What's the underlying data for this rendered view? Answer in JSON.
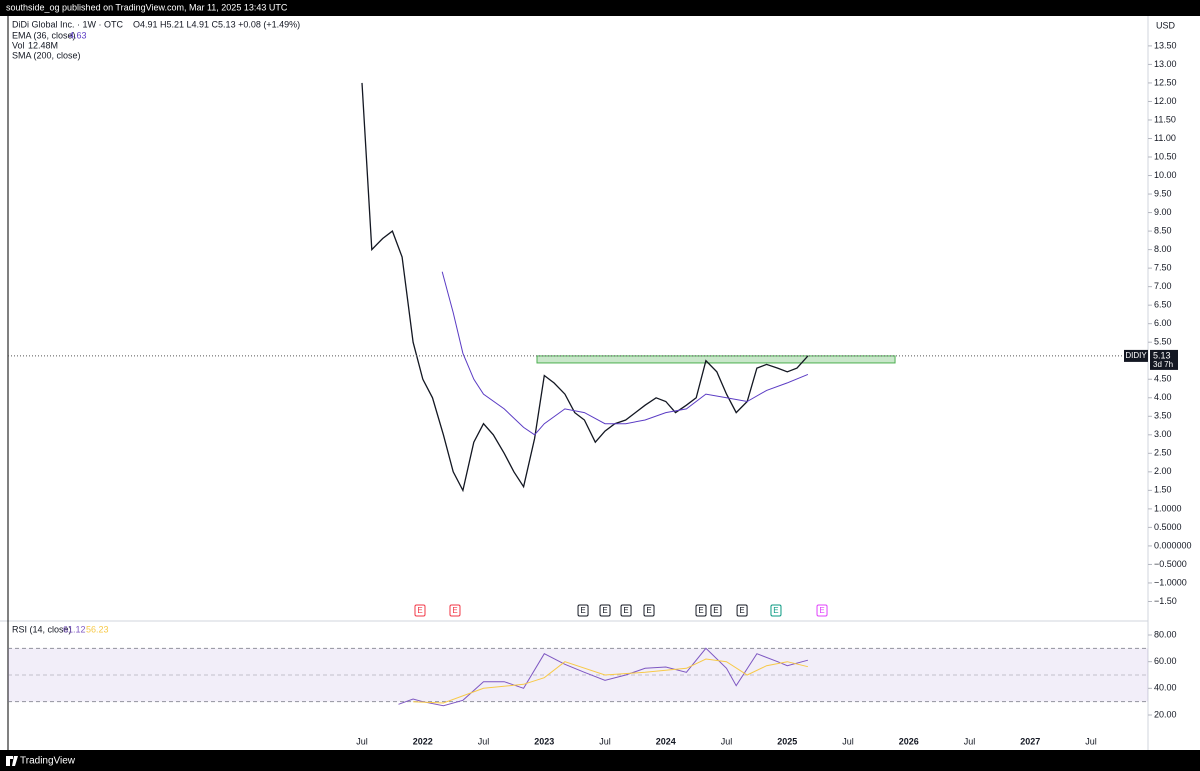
{
  "header": {
    "publisher": "southside_og published on TradingView.com, Mar 11, 2025 13:43 UTC",
    "symbol": "DiDi Global Inc. · 1W · OTC",
    "ohlc": "O4.91 H5.21 L4.91 C5.13 +0.08 (+1.49%)",
    "volume_label": "Vol",
    "volume_value": "12.48M",
    "sma_label": "SMA (200, close)",
    "currency": "USD",
    "countdown": "3d 7h"
  },
  "footer": {
    "brand": "TradingView"
  },
  "chart_data": [
    {
      "type": "line",
      "xlim": [
        2018.586,
        2027.969
      ],
      "ylim": [
        -2.0,
        14.28
      ],
      "xticks": [
        {
          "value": 2021.5,
          "label": "Jul"
        },
        {
          "value": 2022,
          "label": "2022"
        },
        {
          "value": 2022.5,
          "label": "Jul"
        },
        {
          "value": 2023,
          "label": "2023"
        },
        {
          "value": 2023.5,
          "label": "Jul"
        },
        {
          "value": 2024,
          "label": "2024"
        },
        {
          "value": 2024.5,
          "label": "Jul"
        },
        {
          "value": 2025,
          "label": "2025"
        },
        {
          "value": 2025.5,
          "label": "Jul"
        },
        {
          "value": 2026,
          "label": "2026"
        },
        {
          "value": 2026.5,
          "label": "Jul"
        },
        {
          "value": 2027,
          "label": "2027"
        },
        {
          "value": 2027.5,
          "label": "Jul"
        }
      ],
      "yticks": [
        {
          "value": 13.5,
          "label": "13.50"
        },
        {
          "value": 13,
          "label": "13.00"
        },
        {
          "value": 12.5,
          "label": "12.50"
        },
        {
          "value": 12,
          "label": "12.00"
        },
        {
          "value": 11.5,
          "label": "11.50"
        },
        {
          "value": 11,
          "label": "11.00"
        },
        {
          "value": 10.5,
          "label": "10.50"
        },
        {
          "value": 10,
          "label": "10.00"
        },
        {
          "value": 9.5,
          "label": "9.50"
        },
        {
          "value": 9,
          "label": "9.00"
        },
        {
          "value": 8.5,
          "label": "8.50"
        },
        {
          "value": 8,
          "label": "8.00"
        },
        {
          "value": 7.5,
          "label": "7.50"
        },
        {
          "value": 7,
          "label": "7.00"
        },
        {
          "value": 6.5,
          "label": "6.50"
        },
        {
          "value": 6,
          "label": "6.00"
        },
        {
          "value": 5.5,
          "label": "5.50"
        },
        {
          "value": 4.5,
          "label": "4.50"
        },
        {
          "value": 4,
          "label": "4.00"
        },
        {
          "value": 3.5,
          "label": "3.50"
        },
        {
          "value": 3,
          "label": "3.00"
        },
        {
          "value": 2.5,
          "label": "2.50"
        },
        {
          "value": 2,
          "label": "2.00"
        },
        {
          "value": 1.5,
          "label": "1.50"
        },
        {
          "value": 1,
          "label": "1.0000"
        },
        {
          "value": 0.5,
          "label": "0.5000"
        },
        {
          "value": 0,
          "label": "0.000000"
        },
        {
          "value": -0.5,
          "label": "−0.5000"
        },
        {
          "value": -1,
          "label": "−1.0000"
        },
        {
          "value": -1.5,
          "label": "−1.50"
        }
      ],
      "series": [
        {
          "name": "DIDIY",
          "color": "#131722",
          "x": [
            2021.5,
            2021.58,
            2021.67,
            2021.75,
            2021.83,
            2021.92,
            2022.0,
            2022.08,
            2022.17,
            2022.25,
            2022.33,
            2022.42,
            2022.5,
            2022.58,
            2022.67,
            2022.75,
            2022.83,
            2022.92,
            2023.0,
            2023.08,
            2023.17,
            2023.25,
            2023.33,
            2023.42,
            2023.5,
            2023.58,
            2023.67,
            2023.75,
            2023.83,
            2023.92,
            2024.0,
            2024.08,
            2024.17,
            2024.25,
            2024.33,
            2024.42,
            2024.5,
            2024.58,
            2024.67,
            2024.75,
            2024.83,
            2024.92,
            2025.0,
            2025.08,
            2025.17
          ],
          "values": [
            12.5,
            8.0,
            8.3,
            8.5,
            7.8,
            5.5,
            4.5,
            4.0,
            3.0,
            2.0,
            1.5,
            2.8,
            3.3,
            3.0,
            2.5,
            2.0,
            1.6,
            2.9,
            4.6,
            4.4,
            4.1,
            3.6,
            3.4,
            2.8,
            3.1,
            3.3,
            3.4,
            3.6,
            3.8,
            4.0,
            3.9,
            3.6,
            3.8,
            4.0,
            5.0,
            4.7,
            4.1,
            3.6,
            3.9,
            4.8,
            4.9,
            4.8,
            4.7,
            4.8,
            5.13
          ]
        },
        {
          "name": "EMA (36, close)",
          "color": "#5b3cc4",
          "x": [
            2022.16,
            2022.25,
            2022.33,
            2022.42,
            2022.5,
            2022.67,
            2022.83,
            2022.92,
            2023.0,
            2023.17,
            2023.33,
            2023.5,
            2023.67,
            2023.83,
            2024.0,
            2024.17,
            2024.33,
            2024.5,
            2024.67,
            2024.83,
            2025.0,
            2025.17
          ],
          "values": [
            7.4,
            6.3,
            5.2,
            4.5,
            4.1,
            3.7,
            3.2,
            3.0,
            3.3,
            3.7,
            3.6,
            3.3,
            3.3,
            3.4,
            3.6,
            3.7,
            4.1,
            4.0,
            3.9,
            4.2,
            4.4,
            4.63
          ]
        }
      ],
      "zone": {
        "x": [
          2022.94,
          2025.887
        ],
        "y": [
          4.94,
          5.13
        ],
        "color": "#4caf50"
      },
      "earnings_markers": [
        {
          "x": 2021.977,
          "label": "E",
          "color": "#f23645"
        },
        {
          "x": 2022.265,
          "label": "E",
          "color": "#f23645"
        },
        {
          "x": 2023.319,
          "label": "E",
          "color": "#131722"
        },
        {
          "x": 2023.5,
          "label": "E",
          "color": "#131722"
        },
        {
          "x": 2023.673,
          "label": "E",
          "color": "#131722"
        },
        {
          "x": 2023.862,
          "label": "E",
          "color": "#131722"
        },
        {
          "x": 2024.29,
          "label": "E",
          "color": "#131722"
        },
        {
          "x": 2024.413,
          "label": "E",
          "color": "#131722"
        },
        {
          "x": 2024.628,
          "label": "E",
          "color": "#131722"
        },
        {
          "x": 2024.907,
          "label": "E",
          "color": "#089981"
        },
        {
          "x": 2025.286,
          "label": "E",
          "color": "#e040fb"
        }
      ]
    },
    {
      "type": "line",
      "xlim": [
        2018.586,
        2027.969
      ],
      "ylim": [
        -2.5,
        89.75
      ],
      "yticks": [
        {
          "value": 80,
          "label": "80.00"
        },
        {
          "value": 60,
          "label": "60.00"
        },
        {
          "value": 40,
          "label": "40.00"
        },
        {
          "value": 20,
          "label": "20.00"
        }
      ],
      "bands": [
        70,
        50,
        30
      ],
      "series": [
        {
          "name": "RSI (14, close)",
          "color": "#7e57c2",
          "x": [
            2021.8,
            2021.92,
            2022.0,
            2022.17,
            2022.33,
            2022.5,
            2022.67,
            2022.83,
            2023.0,
            2023.17,
            2023.33,
            2023.5,
            2023.67,
            2023.83,
            2024.0,
            2024.17,
            2024.33,
            2024.5,
            2024.58,
            2024.75,
            2024.92,
            2025.0,
            2025.17
          ],
          "values": [
            28,
            32,
            30,
            27,
            31,
            45,
            45,
            40,
            66,
            58,
            52,
            46,
            50,
            55,
            56,
            52,
            70,
            55,
            42,
            66,
            60,
            57,
            61.12
          ]
        },
        {
          "color": "#f7c948",
          "x": [
            2021.92,
            2022.17,
            2022.5,
            2022.83,
            2023.0,
            2023.17,
            2023.5,
            2023.83,
            2024.17,
            2024.33,
            2024.5,
            2024.67,
            2024.83,
            2025.0,
            2025.17
          ],
          "values": [
            30,
            29,
            40,
            43,
            48,
            60,
            50,
            52,
            55,
            62,
            60,
            50,
            57,
            60,
            56.23
          ]
        }
      ]
    }
  ]
}
